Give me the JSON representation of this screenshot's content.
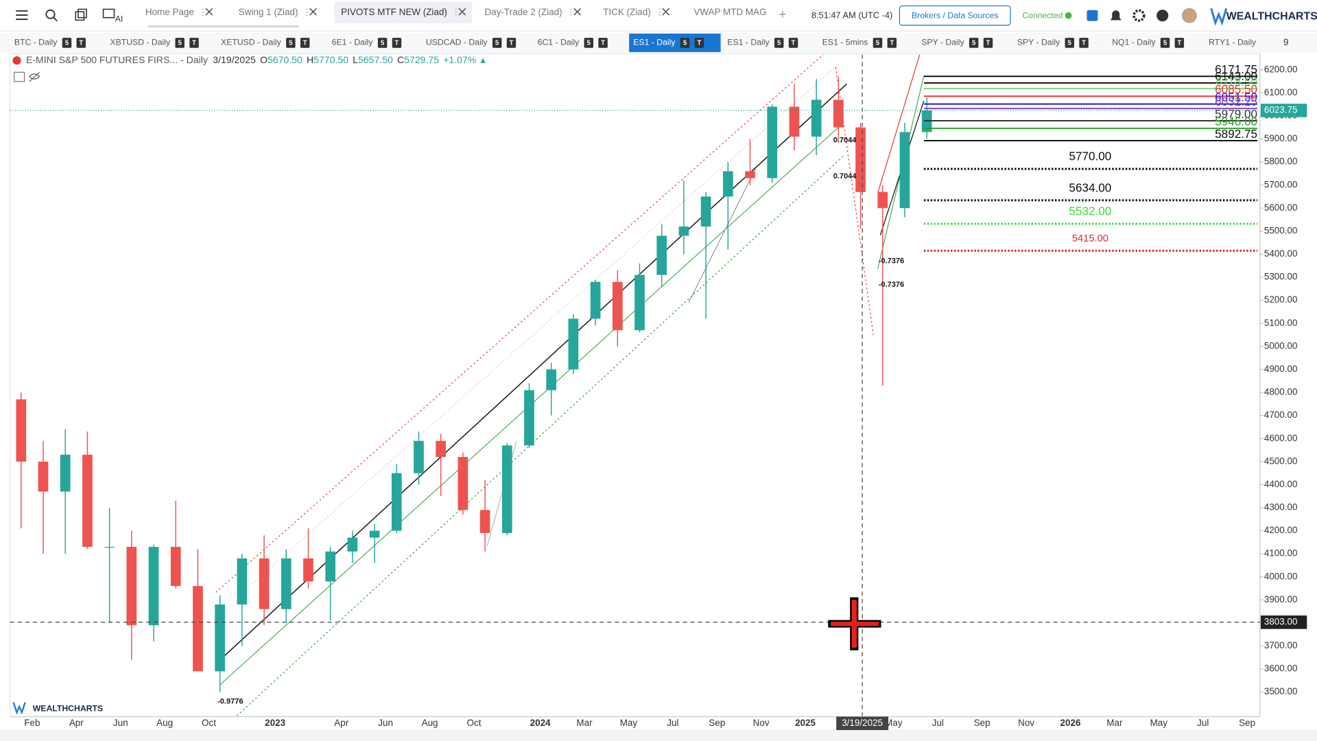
{
  "toolbar": {
    "tabs": [
      "Home Page",
      "Swing 1 (Ziad)",
      "PIVOTS MTF NEW (Ziad)",
      "Day-Trade 2 (Ziad)",
      "TICK (Ziad)",
      "VWAP MTD MAG"
    ],
    "clock": "8:51:47 AM (UTC -4)",
    "brokers_button": "Brokers / Data Sources",
    "status": "Connected",
    "brand": "WEALTHCHARTS"
  },
  "symbol_tabs": {
    "labels": [
      "BTC - Daily",
      "XBTUSD - Daily",
      "XETUSD - Daily",
      "6E1 - Daily",
      "USDCAD - Daily",
      "6C1 - Daily",
      "ES1 - Daily",
      "ES1 - Daily",
      "ES1 - 5mins",
      "SPY - Daily",
      "SPY - Daily",
      "NQ1 - Daily",
      "RTY1 - Daily"
    ],
    "badges": [
      "5",
      "T"
    ],
    "more": "9"
  },
  "chart_data": {
    "type": "candlestick",
    "title": "E-MINI S&P 500 FUTURES FIRS... - Daily",
    "header": [
      {
        "key": "",
        "text": "3/19/2025"
      },
      {
        "key": "O",
        "text": "5670.50"
      },
      {
        "key": "H",
        "text": "5770.50"
      },
      {
        "key": "L",
        "text": "5657.50"
      },
      {
        "key": "C",
        "text": "5729.75"
      },
      {
        "key": "",
        "text": "+1.07%"
      }
    ],
    "categories": [
      null,
      "Feb",
      null,
      "Apr",
      null,
      "Jun",
      null,
      "Aug",
      null,
      "Oct",
      null,
      null,
      "2023",
      null,
      null,
      "Apr",
      null,
      "Jun",
      null,
      "Aug",
      null,
      "Oct",
      null,
      null,
      "2024",
      null,
      "Mar",
      null,
      "May",
      null,
      "Jul",
      null,
      "Sep",
      null,
      "Nov",
      null,
      "2025",
      null,
      null,
      null,
      "May",
      null,
      "Jul",
      null,
      "Sep",
      null,
      "Nov",
      null,
      "2026",
      null,
      "Mar",
      null,
      "May",
      null,
      "Jul",
      null,
      "Sep"
    ],
    "open": [
      4770,
      4500,
      4370,
      4530,
      4130,
      4130,
      3790,
      4130,
      3960,
      3590,
      3880,
      4080,
      3860,
      4080,
      3980,
      4110,
      4170,
      4200,
      4450,
      4590,
      4520,
      4290,
      4190,
      4570,
      4810,
      4900,
      5120,
      5280,
      5070,
      5310,
      5480,
      5520,
      5650,
      5760,
      5730,
      6040,
      5910,
      6070,
      5950,
      5670,
      5600,
      5930,
      null,
      null,
      null,
      null,
      null,
      null,
      null,
      null,
      null,
      null,
      null,
      null,
      null,
      null,
      null
    ],
    "high": [
      4800,
      4590,
      4640,
      4630,
      4300,
      4200,
      4140,
      4330,
      4120,
      3920,
      4100,
      4180,
      4120,
      4210,
      4130,
      4200,
      4230,
      4490,
      4630,
      4620,
      4540,
      4420,
      4580,
      4840,
      4930,
      5140,
      5290,
      5330,
      5360,
      5530,
      5720,
      5670,
      5800,
      5900,
      6050,
      6140,
      6160,
      6170,
      5970,
      5700,
      5970,
      6080,
      null,
      null,
      null,
      null,
      null,
      null,
      null,
      null,
      null,
      null,
      null,
      null,
      null,
      null,
      null
    ],
    "low": [
      4210,
      4100,
      4100,
      4120,
      3800,
      3640,
      3720,
      3950,
      3590,
      3500,
      3700,
      3790,
      3800,
      3950,
      3810,
      4060,
      4060,
      4190,
      4400,
      4350,
      4270,
      4110,
      4180,
      4560,
      4700,
      4880,
      5090,
      5000,
      5060,
      5260,
      5400,
      5120,
      5420,
      5700,
      5710,
      5850,
      5830,
      5890,
      5510,
      4830,
      5560,
      5900,
      null,
      null,
      null,
      null,
      null,
      null,
      null,
      null,
      null,
      null,
      null,
      null,
      null,
      null,
      null
    ],
    "close": [
      4500,
      4370,
      4530,
      4130,
      4130,
      3790,
      4130,
      3960,
      3590,
      3880,
      4080,
      3860,
      4080,
      3980,
      4110,
      4170,
      4200,
      4450,
      4590,
      4520,
      4290,
      4190,
      4570,
      4810,
      4900,
      5120,
      5280,
      5070,
      5310,
      5480,
      5520,
      5650,
      5760,
      5730,
      6040,
      5910,
      6070,
      5950,
      5670,
      5600,
      5930,
      6023.75,
      null,
      null,
      null,
      null,
      null,
      null,
      null,
      null,
      null,
      null,
      null,
      null,
      null,
      null,
      null
    ],
    "up_color": "#26a69a",
    "down_color": "#ef5350",
    "ylim": [
      3397,
      6266
    ],
    "yticks": [
      {
        "value": 3500,
        "label": "3500.00"
      },
      {
        "value": 3600,
        "label": "3600.00"
      },
      {
        "value": 3700,
        "label": "3700.00"
      },
      {
        "value": 3800,
        "label": "3800.00"
      },
      {
        "value": 3900,
        "label": "3900.00"
      },
      {
        "value": 4000,
        "label": "4000.00"
      },
      {
        "value": 4100,
        "label": "4100.00"
      },
      {
        "value": 4200,
        "label": "4200.00"
      },
      {
        "value": 4300,
        "label": "4300.00"
      },
      {
        "value": 4400,
        "label": "4400.00"
      },
      {
        "value": 4500,
        "label": "4500.00"
      },
      {
        "value": 4600,
        "label": "4600.00"
      },
      {
        "value": 4700,
        "label": "4700.00"
      },
      {
        "value": 4800,
        "label": "4800.00"
      },
      {
        "value": 4900,
        "label": "4900.00"
      },
      {
        "value": 5000,
        "label": "5000.00"
      },
      {
        "value": 5100,
        "label": "5100.00"
      },
      {
        "value": 5200,
        "label": "5200.00"
      },
      {
        "value": 5300,
        "label": "5300.00"
      },
      {
        "value": 5400,
        "label": "5400.00"
      },
      {
        "value": 5500,
        "label": "5500.00"
      },
      {
        "value": 5600,
        "label": "5600.00"
      },
      {
        "value": 5700,
        "label": "5700.00"
      },
      {
        "value": 5800,
        "label": "5800.00"
      },
      {
        "value": 5900,
        "label": "5900.00"
      },
      {
        "value": 6000,
        "label": "6000.00"
      },
      {
        "value": 6100,
        "label": "6100.00"
      },
      {
        "value": 6200,
        "label": "6200.00"
      }
    ],
    "levels": [
      {
        "value": 6171.75,
        "label": "6171.75",
        "color": "#111111",
        "style": "solid",
        "place": "right"
      },
      {
        "value": 6143,
        "label": "6143.00",
        "color": "#111111",
        "style": "solid",
        "place": "right"
      },
      {
        "value": 6118.5,
        "label": "6118.50",
        "color": "#7bdc7b",
        "style": "solid",
        "place": "right"
      },
      {
        "value": 6085.5,
        "label": "6085.50",
        "color": "#e53935",
        "style": "solid",
        "place": "right"
      },
      {
        "value": 6051.5,
        "label": "6051.50",
        "color": "#1c1cd6",
        "style": "solid",
        "place": "right"
      },
      {
        "value": 6032.25,
        "label": "6032.25",
        "color": "#8e44ad",
        "style": "solid",
        "place": "right"
      },
      {
        "value": 5979,
        "label": "5979.00",
        "color": "#333333",
        "style": "solid",
        "place": "right"
      },
      {
        "value": 5946,
        "label": "5946.00",
        "color": "#2e9e2e",
        "style": "solid",
        "place": "right"
      },
      {
        "value": 5892.75,
        "label": "5892.75",
        "color": "#111111",
        "style": "solid",
        "place": "right"
      },
      {
        "value": 5770,
        "label": "5770.00",
        "color": "#111111",
        "style": "dotted",
        "place": "center"
      },
      {
        "value": 5634,
        "label": "5634.00",
        "color": "#111111",
        "style": "dotted",
        "place": "center"
      },
      {
        "value": 5532,
        "label": "5532.00",
        "color": "#3ddc3d",
        "style": "dotted",
        "place": "center"
      },
      {
        "value": 5415,
        "label": "5415.00",
        "color": "#d32f2f",
        "style": "dotted",
        "place": "center"
      }
    ],
    "last_price": 6023.75,
    "last_price_color": "#26a69a",
    "annotations": [
      "0.7044",
      "0.7044",
      "-0.7376",
      "-0.7376",
      "-0.9776"
    ],
    "crosshair": {
      "x_label": "3/19/2025",
      "y": {
        "value": 3803,
        "label": "3803.00"
      }
    },
    "watermark": "WEALTHCHARTS"
  }
}
